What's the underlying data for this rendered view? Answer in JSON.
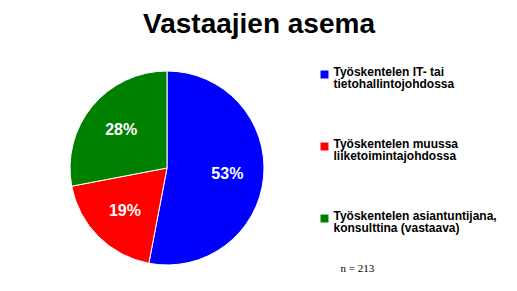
{
  "chart_data": {
    "type": "pie",
    "title": "Vastaajien asema",
    "categories": [
      "Työskentelen IT- tai tietohallintojohdossa",
      "Työskentelen muussa liiketoimintajohdossa",
      "Työskentelen asiantuntijana, konsulttina (vastaava)"
    ],
    "values": [
      53,
      19,
      28
    ],
    "value_labels": [
      "53%",
      "19%",
      "28%"
    ],
    "colors": [
      "#0000ff",
      "#ff0000",
      "#008000"
    ],
    "data_labels": true,
    "legend": "right",
    "annotations": [
      "n = 213"
    ]
  }
}
